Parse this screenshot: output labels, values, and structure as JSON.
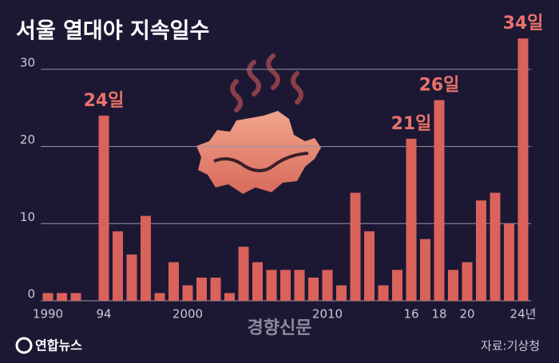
{
  "chart_data": {
    "type": "bar",
    "title": "서울 열대야 지속일수",
    "categories": [
      "1990",
      null,
      null,
      null,
      "94",
      null,
      null,
      null,
      null,
      null,
      "2000",
      null,
      null,
      null,
      null,
      null,
      null,
      null,
      null,
      null,
      "2010",
      null,
      null,
      null,
      null,
      null,
      "16",
      null,
      "18",
      null,
      "20",
      null,
      null,
      null,
      "24년"
    ],
    "values": [
      1,
      1,
      1,
      0,
      24,
      9,
      6,
      11,
      1,
      5,
      2,
      3,
      3,
      1,
      7,
      5,
      4,
      4,
      4,
      3,
      4,
      2,
      14,
      9,
      2,
      4,
      21,
      8,
      26,
      4,
      5,
      13,
      14,
      10,
      34
    ],
    "value_labels": [
      null,
      null,
      null,
      null,
      "24일",
      null,
      null,
      null,
      null,
      null,
      null,
      null,
      null,
      null,
      null,
      null,
      null,
      null,
      null,
      null,
      null,
      null,
      null,
      null,
      null,
      null,
      "21일",
      null,
      "26일",
      null,
      null,
      null,
      null,
      null,
      "34일"
    ],
    "color": "#d9625b",
    "ylim": [
      0,
      35
    ],
    "yticks": [
      0,
      10,
      20,
      30
    ],
    "grid": true,
    "watermark": "경향신문",
    "logo": "연합뉴스",
    "source": "자료:기상청"
  }
}
